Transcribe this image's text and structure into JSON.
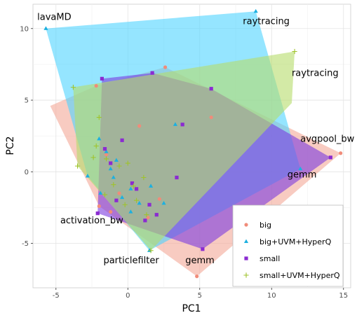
{
  "chart_data": {
    "type": "scatter",
    "xlabel": "PC1",
    "ylabel": "PC2",
    "xlim": [
      -6.6,
      15.5
    ],
    "ylim": [
      -8.1,
      11.7
    ],
    "xticks": [
      -5,
      0,
      5,
      10,
      15
    ],
    "yticks": [
      -5,
      0,
      5,
      10
    ],
    "xtick_labels": [
      "-5",
      "0",
      "5",
      "10",
      "15"
    ],
    "ytick_labels": [
      "-5",
      "0",
      "5",
      "10"
    ],
    "grid": true,
    "legend_position": "bottom-right",
    "series": [
      {
        "name": "big",
        "color": "#F08C7A",
        "fill": "#F4A898",
        "marker": "circle",
        "hull": [
          [
            -5.4,
            4.6
          ],
          [
            -2.2,
            6.0
          ],
          [
            2.6,
            7.3
          ],
          [
            14.8,
            1.3
          ],
          [
            4.8,
            -7.3
          ],
          [
            -2.0,
            -2.4
          ]
        ],
        "points": [
          [
            -2.2,
            6.0
          ],
          [
            2.6,
            7.3
          ],
          [
            14.8,
            1.3
          ],
          [
            4.8,
            -7.3
          ],
          [
            -2.0,
            -2.4
          ],
          [
            0.8,
            3.2
          ],
          [
            5.8,
            3.8
          ],
          [
            -1.5,
            1.2
          ],
          [
            -0.6,
            -1.5
          ],
          [
            1.4,
            -3.2
          ],
          [
            -1.2,
            -2.8
          ],
          [
            0.3,
            -0.8
          ],
          [
            2.2,
            -1.9
          ]
        ]
      },
      {
        "name": "big+UVM+HyperQ",
        "color": "#1CB0E0",
        "fill": "#4FD3FF",
        "marker": "triangle",
        "hull": [
          [
            -5.7,
            10.0
          ],
          [
            8.9,
            11.2
          ],
          [
            12.0,
            0.2
          ],
          [
            1.5,
            -5.5
          ],
          [
            -2.8,
            -0.3
          ]
        ],
        "points": [
          [
            -5.7,
            10.0
          ],
          [
            8.9,
            11.2
          ],
          [
            12.0,
            0.2
          ],
          [
            1.5,
            -5.5
          ],
          [
            -2.8,
            -0.3
          ],
          [
            -2.0,
            2.3
          ],
          [
            -1.5,
            1.4
          ],
          [
            -0.8,
            0.8
          ],
          [
            -1.0,
            -0.4
          ],
          [
            0.2,
            -1.2
          ],
          [
            0.8,
            -2.2
          ],
          [
            1.6,
            -1.0
          ],
          [
            2.5,
            -2.2
          ],
          [
            -1.9,
            -1.5
          ],
          [
            0.2,
            -2.8
          ],
          [
            3.3,
            3.3
          ],
          [
            -1.2,
            0.2
          ],
          [
            -0.4,
            -1.8
          ]
        ]
      },
      {
        "name": "small",
        "color": "#8B2BD1",
        "fill": "#7C3AE0",
        "marker": "square",
        "hull": [
          [
            -1.8,
            6.5
          ],
          [
            1.7,
            6.9
          ],
          [
            5.8,
            5.8
          ],
          [
            14.1,
            1.0
          ],
          [
            5.2,
            -5.4
          ],
          [
            -2.1,
            -2.9
          ]
        ],
        "points": [
          [
            -1.8,
            6.5
          ],
          [
            1.7,
            6.9
          ],
          [
            5.8,
            5.8
          ],
          [
            14.1,
            1.0
          ],
          [
            5.2,
            -5.4
          ],
          [
            -2.1,
            -2.9
          ],
          [
            3.8,
            3.3
          ],
          [
            -0.4,
            2.2
          ],
          [
            -1.2,
            0.6
          ],
          [
            0.3,
            -0.8
          ],
          [
            1.5,
            -2.3
          ],
          [
            3.4,
            -0.4
          ],
          [
            -0.8,
            -2.0
          ],
          [
            1.2,
            -3.4
          ],
          [
            0.6,
            -1.2
          ],
          [
            2.0,
            -3.0
          ],
          [
            -1.6,
            1.6
          ]
        ]
      },
      {
        "name": "small+UVM+HyperQ",
        "color": "#9FC32B",
        "fill": "#B5DC6B",
        "marker": "plus",
        "hull": [
          [
            -3.8,
            5.9
          ],
          [
            11.6,
            8.4
          ],
          [
            11.4,
            4.8
          ],
          [
            1.6,
            -5.5
          ],
          [
            -3.5,
            0.4
          ]
        ],
        "points": [
          [
            -3.8,
            5.9
          ],
          [
            11.6,
            8.4
          ],
          [
            1.6,
            -5.5
          ],
          [
            -3.5,
            0.4
          ],
          [
            -2.0,
            3.8
          ],
          [
            -2.2,
            1.8
          ],
          [
            -1.5,
            0.9
          ],
          [
            -0.6,
            0.4
          ],
          [
            0.4,
            -1.0
          ],
          [
            0.6,
            -2.0
          ],
          [
            -1.0,
            -0.9
          ],
          [
            1.3,
            -3.0
          ],
          [
            -0.2,
            -2.3
          ],
          [
            -1.6,
            -1.6
          ],
          [
            0.0,
            0.6
          ],
          [
            1.1,
            -0.4
          ],
          [
            -2.4,
            1.0
          ]
        ]
      }
    ],
    "annotations": [
      {
        "text": "lavaMD",
        "x": -6.3,
        "y": 10.6
      },
      {
        "text": "raytracing",
        "x": 8.0,
        "y": 10.3
      },
      {
        "text": "raytracing",
        "x": 11.4,
        "y": 6.7
      },
      {
        "text": "avgpool_bw",
        "x": 12.0,
        "y": 2.1
      },
      {
        "text": "gemm",
        "x": 11.1,
        "y": -0.4
      },
      {
        "text": "activation_bw",
        "x": -4.7,
        "y": -3.6
      },
      {
        "text": "particlefilter",
        "x": -1.7,
        "y": -6.4
      },
      {
        "text": "gemm",
        "x": 4.0,
        "y": -6.4
      }
    ]
  }
}
